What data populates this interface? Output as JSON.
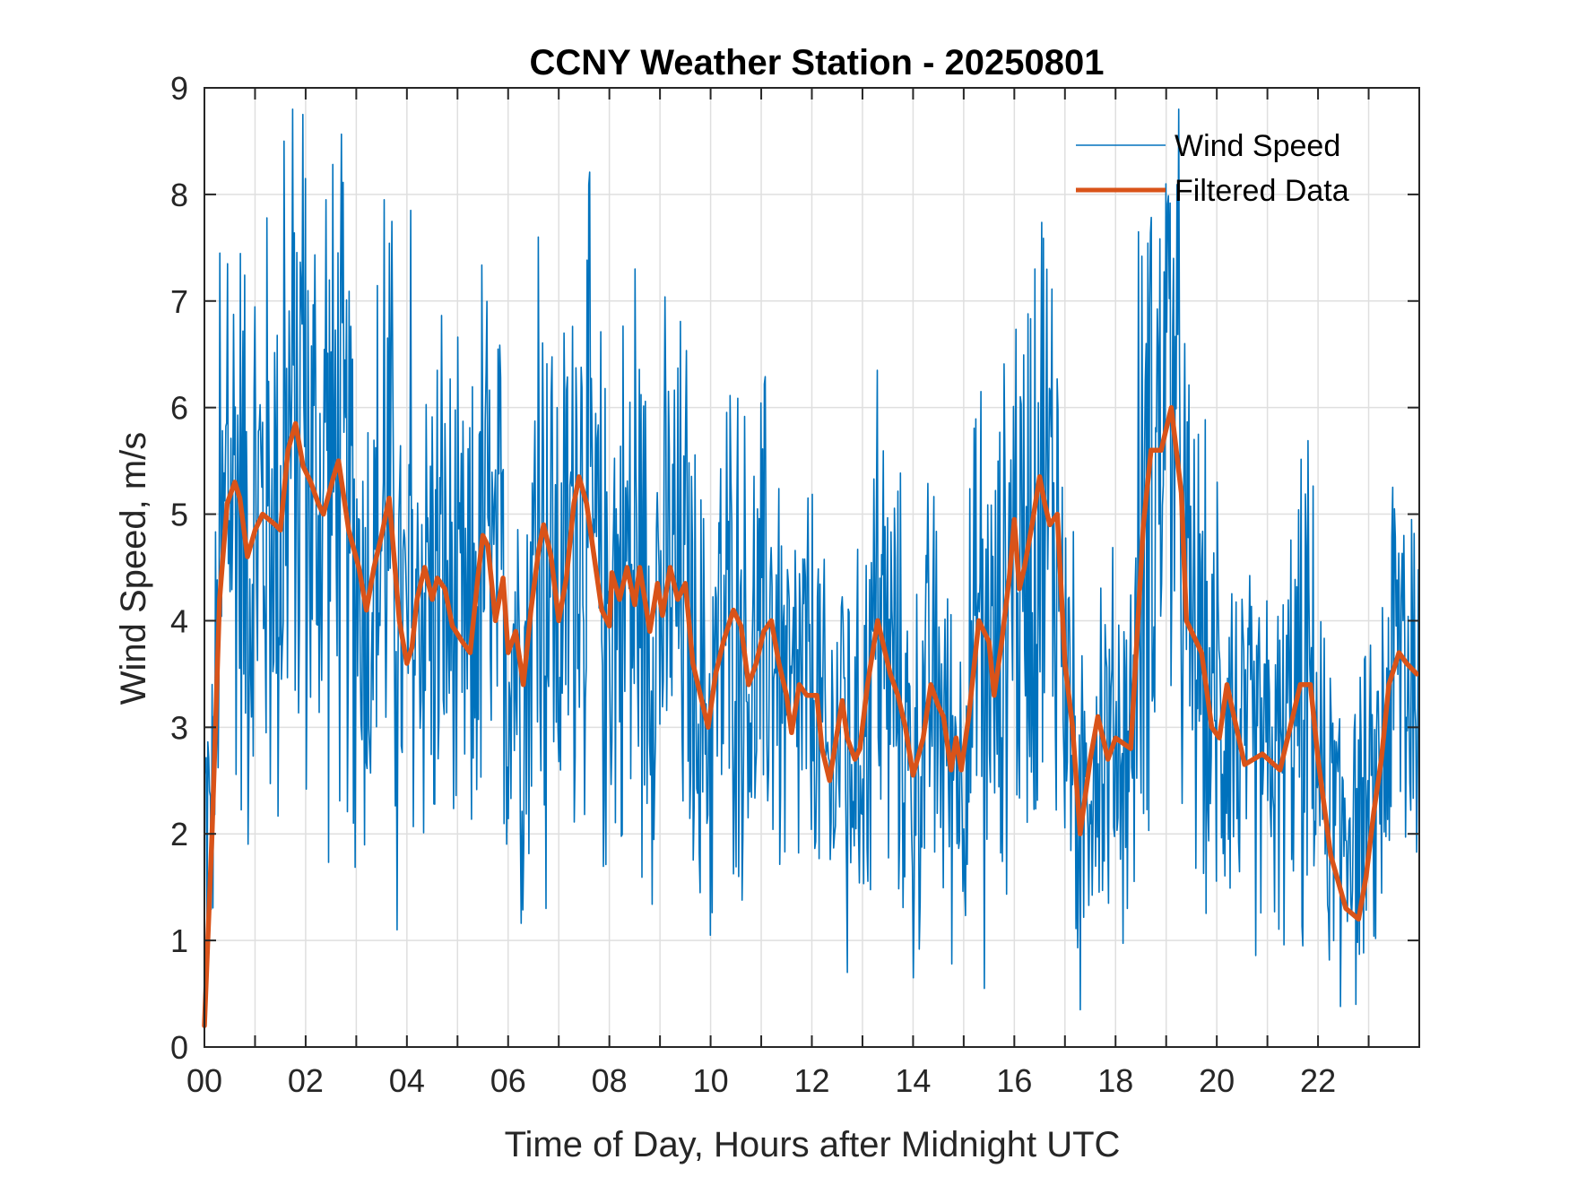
{
  "chart_data": {
    "type": "line",
    "title": "CCNY Weather Station - 20250801",
    "xlabel": "Time of Day, Hours after Midnight UTC",
    "ylabel": "Wind Speed, m/s",
    "xlim": [
      0,
      24
    ],
    "ylim": [
      0,
      9
    ],
    "xticks": [
      0,
      2,
      4,
      6,
      8,
      10,
      12,
      14,
      16,
      18,
      20,
      22
    ],
    "xtick_labels": [
      "00",
      "02",
      "04",
      "06",
      "08",
      "10",
      "12",
      "14",
      "16",
      "18",
      "20",
      "22"
    ],
    "xminor_ticks_every_hours": 1,
    "yticks": [
      0,
      1,
      2,
      3,
      4,
      5,
      6,
      7,
      8,
      9
    ],
    "ytick_labels": [
      "0",
      "1",
      "2",
      "3",
      "4",
      "5",
      "6",
      "7",
      "8",
      "9"
    ],
    "grid": true,
    "legend": {
      "placement": "top-right",
      "box": false
    },
    "series": [
      {
        "name": "Wind Speed",
        "color": "#0072BD",
        "style": "thin-line",
        "note": "high-frequency raw samples; key extremes listed, envelope approximated",
        "peaks": [
          {
            "x": 0.3,
            "y": 7.45
          },
          {
            "x": 0.45,
            "y": 7.35
          },
          {
            "x": 1.58,
            "y": 8.5
          },
          {
            "x": 1.95,
            "y": 8.75
          },
          {
            "x": 2.4,
            "y": 7.95
          },
          {
            "x": 3.55,
            "y": 7.95
          },
          {
            "x": 4.07,
            "y": 7.85
          },
          {
            "x": 6.6,
            "y": 7.6
          },
          {
            "x": 8.5,
            "y": 7.3
          },
          {
            "x": 13.3,
            "y": 6.35
          },
          {
            "x": 16.4,
            "y": 7.3
          },
          {
            "x": 18.45,
            "y": 7.65
          },
          {
            "x": 19.0,
            "y": 8.1
          },
          {
            "x": 19.15,
            "y": 7.4
          },
          {
            "x": 20.0,
            "y": 5.3
          },
          {
            "x": 23.7,
            "y": 4.8
          }
        ],
        "troughs": [
          {
            "x": 0.1,
            "y": 2.4
          },
          {
            "x": 2.95,
            "y": 2.1
          },
          {
            "x": 3.8,
            "y": 1.1
          },
          {
            "x": 6.75,
            "y": 1.3
          },
          {
            "x": 10.0,
            "y": 1.05
          },
          {
            "x": 12.7,
            "y": 0.7
          },
          {
            "x": 14.0,
            "y": 0.65
          },
          {
            "x": 15.4,
            "y": 0.55
          },
          {
            "x": 17.3,
            "y": 0.35
          },
          {
            "x": 21.7,
            "y": 0.95
          },
          {
            "x": 22.45,
            "y": 0.38
          },
          {
            "x": 22.75,
            "y": 0.4
          }
        ]
      },
      {
        "name": "Filtered Data",
        "color": "#D95319",
        "style": "thick-line",
        "x": [
          0.0,
          0.15,
          0.3,
          0.45,
          0.6,
          0.7,
          0.85,
          1.0,
          1.15,
          1.4,
          1.5,
          1.65,
          1.8,
          1.95,
          2.1,
          2.25,
          2.35,
          2.55,
          2.65,
          2.85,
          3.05,
          3.2,
          3.35,
          3.5,
          3.65,
          3.85,
          4.0,
          4.1,
          4.2,
          4.35,
          4.5,
          4.6,
          4.75,
          4.9,
          5.1,
          5.25,
          5.4,
          5.5,
          5.6,
          5.75,
          5.9,
          6.0,
          6.15,
          6.3,
          6.45,
          6.6,
          6.7,
          6.85,
          7.0,
          7.15,
          7.3,
          7.4,
          7.55,
          7.7,
          7.85,
          8.0,
          8.05,
          8.2,
          8.35,
          8.5,
          8.6,
          8.8,
          8.95,
          9.05,
          9.2,
          9.35,
          9.5,
          9.65,
          9.8,
          9.95,
          10.1,
          10.25,
          10.45,
          10.6,
          10.75,
          10.9,
          11.05,
          11.2,
          11.35,
          11.5,
          11.6,
          11.75,
          11.9,
          12.1,
          12.2,
          12.35,
          12.5,
          12.6,
          12.7,
          12.85,
          12.95,
          13.1,
          13.3,
          13.4,
          13.55,
          13.7,
          13.85,
          14.0,
          14.2,
          14.35,
          14.5,
          14.6,
          14.75,
          14.85,
          14.95,
          15.1,
          15.3,
          15.5,
          15.6,
          15.75,
          15.9,
          16.0,
          16.1,
          16.2,
          16.35,
          16.5,
          16.6,
          16.7,
          16.85,
          17.0,
          17.15,
          17.3,
          17.5,
          17.65,
          17.85,
          18.0,
          18.3,
          18.55,
          18.7,
          18.9,
          19.1,
          19.3,
          19.4,
          19.7,
          19.9,
          20.05,
          20.2,
          20.55,
          20.9,
          21.25,
          21.55,
          21.65,
          21.85,
          22.0,
          22.25,
          22.55,
          22.8,
          22.95,
          23.1,
          23.25,
          23.4,
          23.6,
          23.75,
          23.95
        ],
        "y": [
          0.2,
          2.0,
          4.2,
          5.1,
          5.3,
          5.15,
          4.6,
          4.85,
          5.0,
          4.9,
          4.85,
          5.6,
          5.85,
          5.45,
          5.3,
          5.1,
          5.0,
          5.35,
          5.5,
          4.85,
          4.5,
          4.1,
          4.5,
          4.8,
          5.15,
          4.0,
          3.6,
          3.75,
          4.2,
          4.5,
          4.2,
          4.4,
          4.3,
          3.95,
          3.8,
          3.7,
          4.4,
          4.8,
          4.7,
          4.0,
          4.4,
          3.7,
          3.9,
          3.4,
          4.1,
          4.65,
          4.9,
          4.6,
          4.0,
          4.4,
          5.1,
          5.35,
          5.1,
          4.6,
          4.1,
          3.95,
          4.45,
          4.2,
          4.5,
          4.15,
          4.5,
          3.9,
          4.35,
          4.05,
          4.5,
          4.2,
          4.35,
          3.6,
          3.3,
          3.0,
          3.5,
          3.8,
          4.1,
          3.95,
          3.4,
          3.6,
          3.9,
          4.0,
          3.6,
          3.3,
          2.95,
          3.4,
          3.3,
          3.3,
          2.8,
          2.5,
          2.95,
          3.25,
          2.9,
          2.7,
          2.8,
          3.4,
          4.0,
          3.8,
          3.5,
          3.3,
          3.0,
          2.55,
          2.9,
          3.4,
          3.2,
          3.1,
          2.6,
          2.9,
          2.6,
          3.1,
          4.0,
          3.8,
          3.3,
          3.8,
          4.4,
          4.95,
          4.3,
          4.5,
          4.9,
          5.35,
          5.1,
          4.9,
          5.0,
          3.6,
          3.0,
          2.0,
          2.7,
          3.1,
          2.7,
          2.9,
          2.8,
          4.9,
          5.6,
          5.6,
          6.0,
          5.2,
          4.0,
          3.7,
          3.0,
          2.9,
          3.4,
          2.65,
          2.75,
          2.6,
          3.2,
          3.4,
          3.4,
          2.7,
          1.8,
          1.3,
          1.2,
          1.6,
          2.2,
          2.7,
          3.4,
          3.7,
          3.6,
          3.5
        ]
      }
    ]
  }
}
